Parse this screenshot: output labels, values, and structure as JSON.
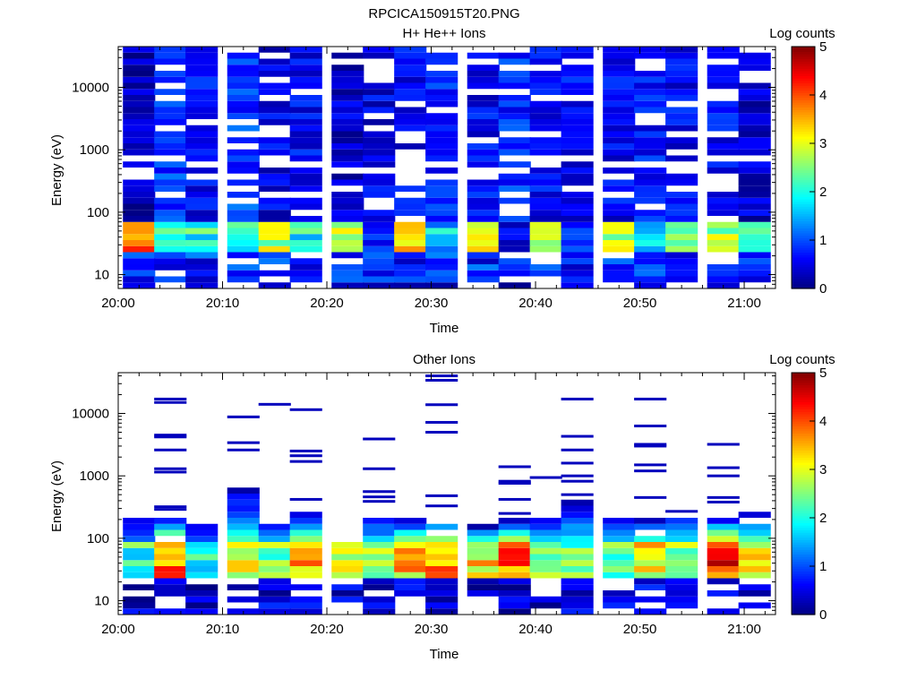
{
  "figure_title": "RPCICA150915T20.PNG",
  "chart_data": [
    {
      "type": "heatmap",
      "title": "H+ He++ Ions",
      "xlabel": "Time",
      "ylabel": "Energy (eV)",
      "x_ticks": [
        "20:00",
        "20:10",
        "20:20",
        "20:30",
        "20:40",
        "20:50",
        "21:00"
      ],
      "x_range": [
        "20:00",
        "21:03"
      ],
      "y_scale": "log",
      "y_ticks": [
        "10",
        "100",
        "1000",
        "10000"
      ],
      "y_range": [
        6,
        45000
      ],
      "colorbar": {
        "label": "Log counts",
        "ticks": [
          "0",
          "1",
          "2",
          "3",
          "4",
          "5"
        ],
        "range": [
          0,
          5
        ]
      },
      "time_bins": [
        "20:02",
        "20:05",
        "20:08",
        "20:12",
        "20:15",
        "20:18",
        "20:22",
        "20:25",
        "20:28",
        "20:31",
        "20:35",
        "20:38",
        "20:41",
        "20:44",
        "20:48",
        "20:51",
        "20:54",
        "20:58",
        "21:01"
      ],
      "profile": {
        "low_band_eV": [
          8,
          22
        ],
        "peak_band_eV": [
          22,
          70
        ],
        "high_band_eV": [
          70,
          45000
        ],
        "peak_level": [
          4.0,
          2.6,
          2.3,
          2.1,
          3.0,
          2.2,
          3.3,
          1.2,
          3.6,
          2.0,
          3.6,
          1.0,
          3.0,
          0.8,
          3.0,
          1.8,
          2.4,
          3.0,
          2.8
        ],
        "high_level": [
          0.3,
          0.9,
          0.6,
          0.9,
          0.5,
          0.6,
          0.4,
          0.5,
          0.6,
          0.8,
          0.6,
          0.8,
          0.6,
          0.6,
          0.6,
          0.7,
          0.6,
          0.6,
          0.4
        ]
      }
    },
    {
      "type": "heatmap",
      "title": "Other Ions",
      "xlabel": "Time",
      "ylabel": "Energy (eV)",
      "x_ticks": [
        "20:00",
        "20:10",
        "20:20",
        "20:30",
        "20:40",
        "20:50",
        "21:00"
      ],
      "x_range": [
        "20:00",
        "21:03"
      ],
      "y_scale": "log",
      "y_ticks": [
        "10",
        "100",
        "1000",
        "10000"
      ],
      "y_range": [
        6,
        45000
      ],
      "colorbar": {
        "label": "Log counts",
        "ticks": [
          "0",
          "1",
          "2",
          "3",
          "4",
          "5"
        ],
        "range": [
          0,
          5
        ]
      },
      "time_bins": [
        "20:02",
        "20:05",
        "20:08",
        "20:12",
        "20:15",
        "20:18",
        "20:22",
        "20:25",
        "20:28",
        "20:31",
        "20:35",
        "20:38",
        "20:41",
        "20:44",
        "20:48",
        "20:51",
        "20:54",
        "20:58",
        "21:01"
      ],
      "profile": {
        "low_band_eV": [
          6,
          25
        ],
        "peak_band_eV": [
          25,
          80
        ],
        "upper_band_top_eV": [
          220,
          230,
          170,
          600,
          190,
          270,
          95,
          220,
          210,
          220,
          160,
          200,
          230,
          380,
          200,
          200,
          270,
          220,
          280
        ],
        "peak_level": [
          2.5,
          4.3,
          2.3,
          3.2,
          3.0,
          3.9,
          3.4,
          3.0,
          3.8,
          4.0,
          3.6,
          4.2,
          3.1,
          2.9,
          3.0,
          3.5,
          2.9,
          4.6,
          3.4
        ],
        "sparse_high_lines_eV": [
          [],
          [
            17000,
            15000,
            4500,
            4200,
            2600,
            1300,
            1150,
            320,
            290
          ],
          [],
          [
            8800,
            3400,
            2600
          ],
          [
            14000
          ],
          [
            11500,
            2500,
            2100,
            1700,
            420
          ],
          [],
          [
            3900,
            1300,
            560,
            460,
            390
          ],
          [],
          [
            40000,
            34000,
            13800,
            7200,
            5000,
            480,
            330
          ],
          [],
          [
            1400,
            820,
            760,
            420,
            250
          ],
          [
            940
          ],
          [
            17000,
            4300,
            2600,
            1600,
            1000,
            820,
            500
          ],
          [],
          [
            17000,
            6300,
            3200,
            3000,
            1500,
            1200,
            450
          ],
          [
            270
          ],
          [
            3200,
            1350,
            1000,
            450,
            380
          ],
          []
        ]
      }
    }
  ]
}
